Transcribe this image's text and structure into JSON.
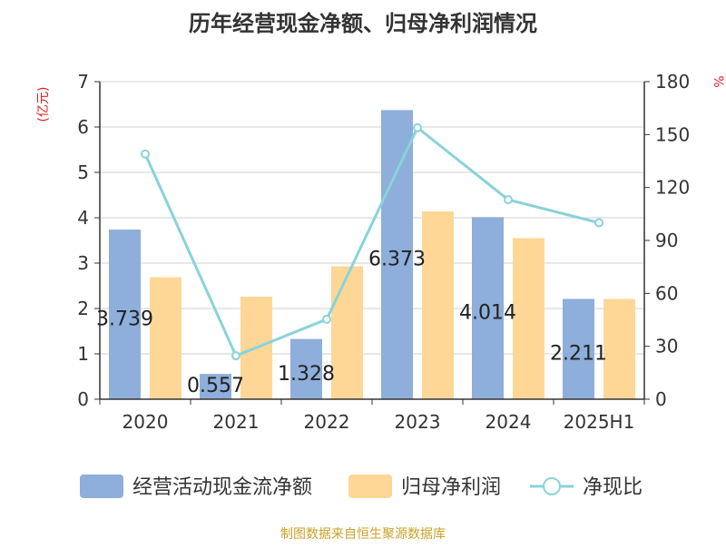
{
  "chart_data": {
    "type": "bar",
    "title": "历年经营现金净额、归母净利润情况",
    "y_left_label": "(亿元)",
    "y_right_label": "%",
    "categories": [
      "2020",
      "2021",
      "2022",
      "2023",
      "2024",
      "2025H1"
    ],
    "y_left_range": [
      0,
      7
    ],
    "y_left_ticks": [
      "0",
      "1",
      "2",
      "3",
      "4",
      "5",
      "6",
      "7"
    ],
    "y_right_range": [
      0,
      180
    ],
    "y_right_ticks": [
      "0",
      "30",
      "60",
      "90",
      "120",
      "150",
      "180"
    ],
    "grid": true,
    "legend_position": "bottom",
    "series": [
      {
        "name": "经营活动现金流净额",
        "type": "bar",
        "axis": "left",
        "color": "#8eaedb",
        "values": [
          3.739,
          0.557,
          1.328,
          6.373,
          4.014,
          2.211
        ],
        "labels": [
          "3.739",
          "0.557",
          "1.328",
          "6.373",
          "4.014",
          "2.211"
        ]
      },
      {
        "name": "归母净利润",
        "type": "bar",
        "axis": "left",
        "color": "#fed797",
        "values": [
          2.69,
          2.26,
          2.93,
          4.14,
          3.55,
          2.21
        ]
      },
      {
        "name": "净现比",
        "type": "line",
        "axis": "right",
        "color": "#89d3d9",
        "values": [
          139.0,
          24.6,
          45.3,
          153.9,
          113.1,
          100.0
        ]
      }
    ],
    "source": "制图数据来自恒生聚源数据库"
  }
}
